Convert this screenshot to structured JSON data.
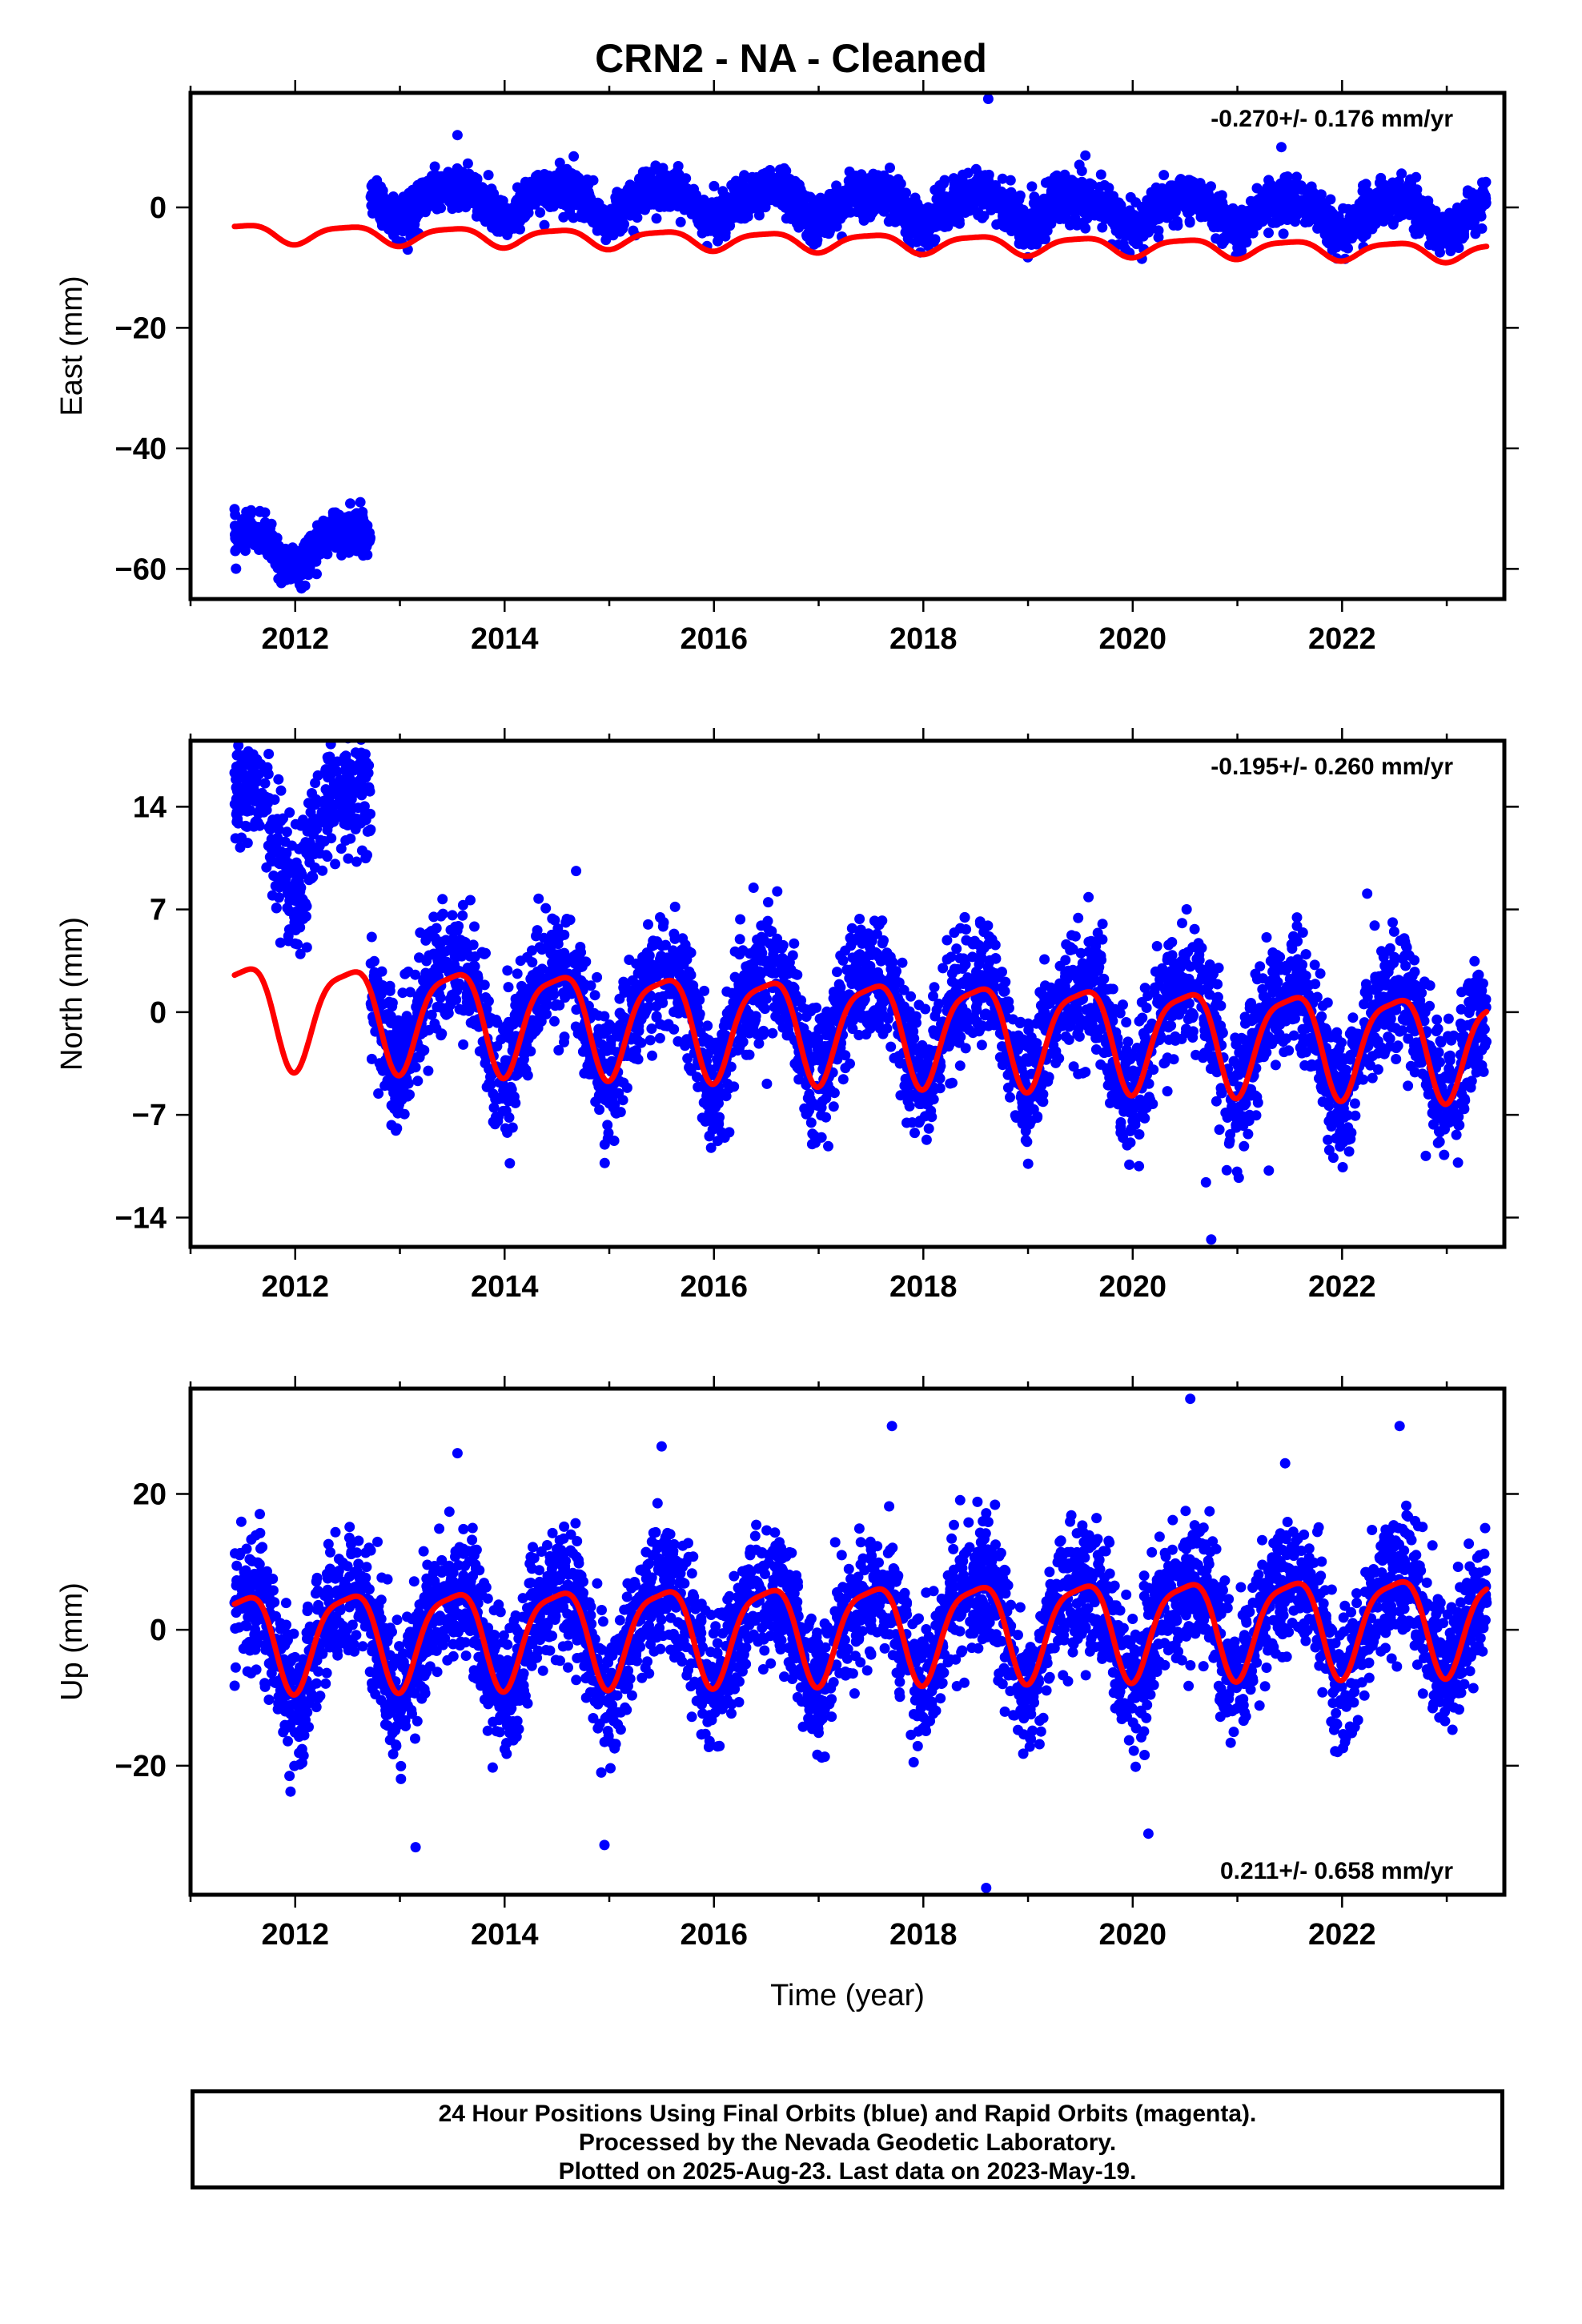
{
  "title": "CRN2  - NA - Cleaned",
  "footer": {
    "line1": "24 Hour Positions Using Final Orbits (blue) and Rapid Orbits (magenta).",
    "line2": "Processed by the Nevada Geodetic Laboratory.",
    "line3": "Plotted on 2025-Aug-23. Last data on 2023-May-19."
  },
  "colors": {
    "points": "#0000ff",
    "model": "#ff0000",
    "frame": "#000000"
  },
  "chart_data": [
    {
      "type": "scatter",
      "component": "east",
      "ylabel": "East (mm)",
      "xlabel": "",
      "rate_text": "-0.270+/- 0.176 mm/yr",
      "rate_position": "top-right",
      "xlim": [
        2011.0,
        2023.55
      ],
      "ylim": [
        -65,
        19
      ],
      "xticks": [
        2012,
        2014,
        2016,
        2018,
        2020,
        2022
      ],
      "yticks": [
        0,
        -20,
        -40,
        -60
      ],
      "data_start": 2011.42,
      "data_end": 2023.38,
      "segments": [
        {
          "start": 2011.42,
          "end": 2012.72,
          "mean_mm": -56.5,
          "annual_amp_mm": 3.0,
          "trend_mm_per_yr": 0.5,
          "scatter_mm": 1.6
        },
        {
          "start": 2012.72,
          "end": 2023.38,
          "mean_mm": 1.5,
          "annual_amp_mm": 2.5,
          "trend_mm_per_yr": -0.25,
          "scatter_mm": 1.8
        }
      ],
      "outliers": [
        [
          2018.62,
          18
        ],
        [
          2021.42,
          10
        ],
        [
          2013.55,
          12
        ]
      ],
      "model_series": {
        "name": "model",
        "mean_mm": -4.2,
        "annual_amp_mm": 1.5,
        "trend_mm_per_yr": -0.27,
        "start": 2011.42,
        "end": 2023.38
      }
    },
    {
      "type": "scatter",
      "component": "north",
      "ylabel": "North (mm)",
      "xlabel": "",
      "rate_text": "-0.195+/- 0.260 mm/yr",
      "rate_position": "top-right",
      "xlim": [
        2011.0,
        2023.55
      ],
      "ylim": [
        -16,
        18.5
      ],
      "xticks": [
        2012,
        2014,
        2016,
        2018,
        2020,
        2022
      ],
      "yticks": [
        14,
        7,
        0,
        -7,
        -14
      ],
      "data_start": 2011.42,
      "data_end": 2023.38,
      "segments": [
        {
          "start": 2011.42,
          "end": 2012.72,
          "mean_mm": 12.5,
          "annual_amp_mm": 3.5,
          "trend_mm_per_yr": 0.0,
          "scatter_mm": 2.0
        },
        {
          "start": 2012.72,
          "end": 2023.38,
          "mean_mm": 0.3,
          "annual_amp_mm": 3.5,
          "trend_mm_per_yr": -0.195,
          "scatter_mm": 2.1
        }
      ],
      "outliers": [
        [
          2014.05,
          -10.3
        ],
        [
          2020.7,
          -11.6
        ],
        [
          2020.75,
          -15.5
        ],
        [
          2021.3,
          -10.8
        ],
        [
          2022.8,
          -9.8
        ]
      ],
      "model_series": {
        "name": "model",
        "mean_mm": 0.2,
        "annual_amp_mm": 3.4,
        "trend_mm_per_yr": -0.195,
        "start": 2011.42,
        "end": 2023.38
      }
    },
    {
      "type": "scatter",
      "component": "up",
      "ylabel": "Up (mm)",
      "xlabel": "Time (year)",
      "rate_text": "0.211+/- 0.658 mm/yr",
      "rate_position": "bottom-right",
      "xlim": [
        2011.0,
        2023.55
      ],
      "ylim": [
        -39,
        35.5
      ],
      "xticks": [
        2012,
        2014,
        2016,
        2018,
        2020,
        2022
      ],
      "yticks": [
        20,
        0,
        -20
      ],
      "data_start": 2011.42,
      "data_end": 2023.38,
      "segments": [
        {
          "start": 2011.42,
          "end": 2023.38,
          "mean_mm": -1.0,
          "annual_amp_mm": 7.0,
          "trend_mm_per_yr": 0.211,
          "scatter_mm": 4.8
        }
      ],
      "outliers": [
        [
          2013.15,
          -32
        ],
        [
          2018.6,
          -38
        ],
        [
          2020.15,
          -30
        ],
        [
          2020.55,
          34
        ],
        [
          2017.7,
          30
        ],
        [
          2022.55,
          30
        ],
        [
          2013.55,
          26
        ],
        [
          2015.5,
          27
        ]
      ],
      "model_series": {
        "name": "model",
        "mean_mm": -1.0,
        "annual_amp_mm": 7.0,
        "trend_mm_per_yr": 0.211,
        "start": 2011.42,
        "end": 2023.38
      }
    }
  ]
}
